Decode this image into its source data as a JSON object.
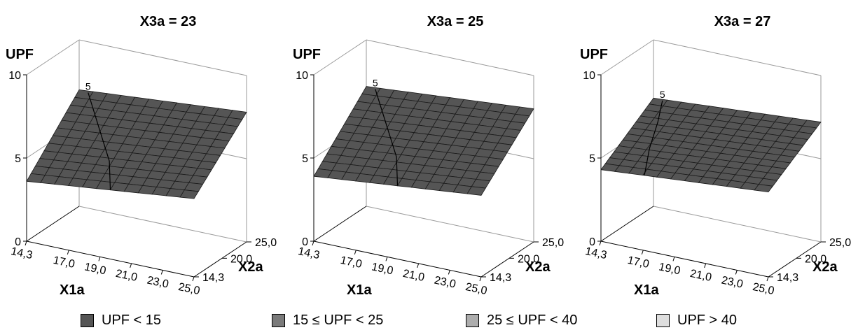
{
  "chart_data": [
    {
      "type": "surface3d",
      "title": "X3a = 23",
      "zlabel": "UPF",
      "xlabel": "X1a",
      "ylabel": "X2a",
      "x_ticks": [
        "14,3",
        "17,0",
        "19,0",
        "21,0",
        "23,0",
        "25,0"
      ],
      "y_ticks": [
        "14,3",
        "20,0",
        "25,0"
      ],
      "z_ticks": [
        "0",
        "5",
        "10"
      ],
      "xlim": [
        14.3,
        25.0
      ],
      "ylim": [
        14.3,
        25.0
      ],
      "zlim": [
        0,
        10
      ],
      "contour_label": "5",
      "surface_corners": {
        "x_min_y_min": 3.7,
        "x_max_y_min": 4.4,
        "x_min_y_max": 6.9,
        "x_max_y_max": 7.4
      }
    },
    {
      "type": "surface3d",
      "title": "X3a = 25",
      "zlabel": "UPF",
      "xlabel": "X1a",
      "ylabel": "X2a",
      "x_ticks": [
        "14,3",
        "17,0",
        "19,0",
        "21,0",
        "23,0",
        "25,0"
      ],
      "y_ticks": [
        "14,3",
        "20,0",
        "25,0"
      ],
      "z_ticks": [
        "0",
        "5",
        "10"
      ],
      "xlim": [
        14.3,
        25.0
      ],
      "ylim": [
        14.3,
        25.0
      ],
      "zlim": [
        0,
        10
      ],
      "contour_label": "5",
      "surface_corners": {
        "x_min_y_min": 3.9,
        "x_max_y_min": 4.6,
        "x_min_y_max": 7.0,
        "x_max_y_max": 7.5
      }
    },
    {
      "type": "surface3d",
      "title": "X3a = 27",
      "zlabel": "UPF",
      "xlabel": "X1a",
      "ylabel": "X2a",
      "x_ticks": [
        "14,3",
        "17,0",
        "19,0",
        "21,0",
        "23,0",
        "25,0"
      ],
      "y_ticks": [
        "14,3",
        "20,0",
        "25,0"
      ],
      "z_ticks": [
        "0",
        "5",
        "10"
      ],
      "xlim": [
        14.3,
        25.0
      ],
      "ylim": [
        14.3,
        25.0
      ],
      "zlim": [
        0,
        10
      ],
      "contour_label": "5",
      "surface_corners": {
        "x_min_y_min": 4.0,
        "x_max_y_min": 4.6,
        "x_min_y_max": 6.5,
        "x_max_y_max": 7.0
      }
    }
  ],
  "legend": [
    {
      "label": "UPF < 15",
      "color": "#555555"
    },
    {
      "label": "15 ≤ UPF < 25",
      "color": "#7a7a7a"
    },
    {
      "label": "25 ≤ UPF < 40",
      "color": "#adadad"
    },
    {
      "label": "UPF > 40",
      "color": "#dedede"
    }
  ]
}
